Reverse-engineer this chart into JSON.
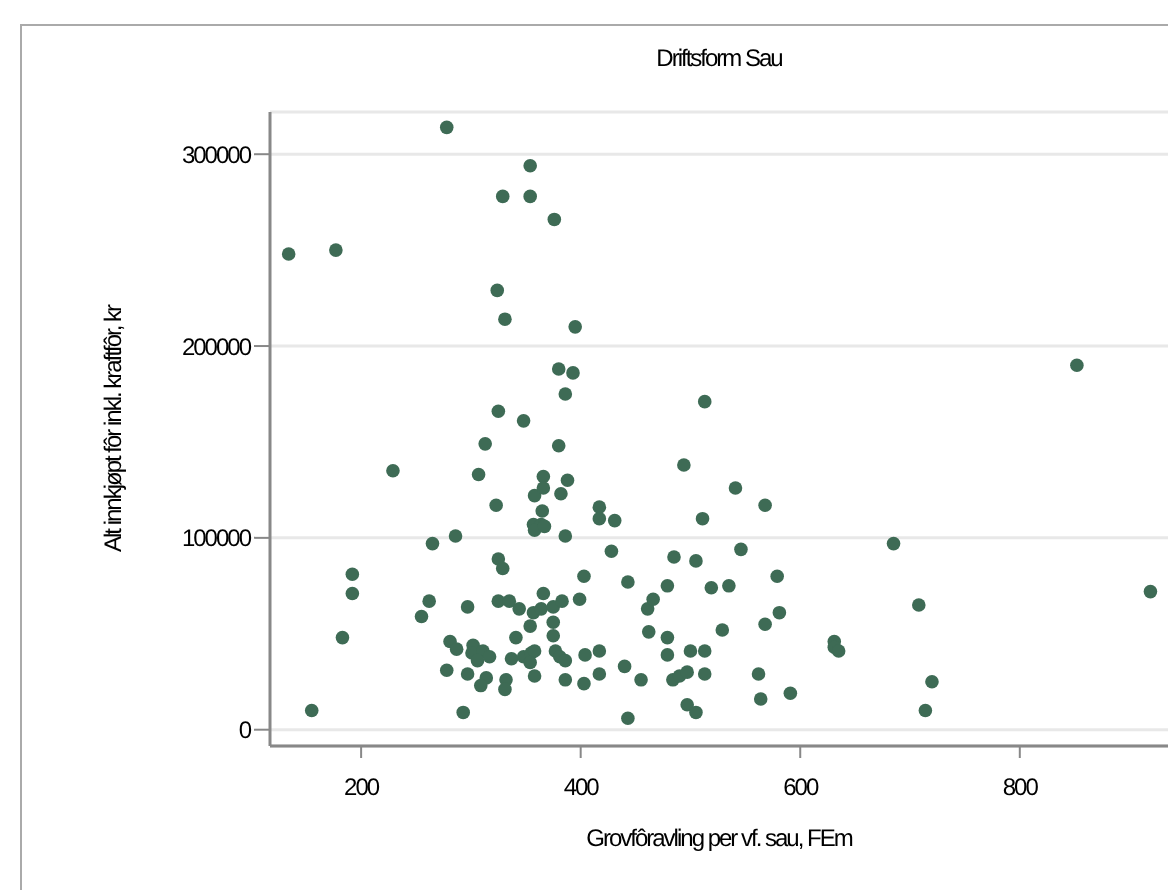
{
  "chart_data": {
    "type": "scatter",
    "title": "Driftsform Sau",
    "xlabel": "Grovfôravling per vf. sau, FEm",
    "ylabel": "Alt innkjøpt fôr inkl. kraftfôr, kr",
    "xlim": [
      117,
      935
    ],
    "ylim": [
      -8500,
      322000
    ],
    "xticks": [
      200,
      400,
      600,
      800
    ],
    "yticks": [
      0,
      100000,
      200000,
      300000
    ],
    "grid": "y",
    "marker": "circle",
    "series": [
      {
        "color": "#3e6b55",
        "x": [
          278,
          354,
          329,
          354,
          376,
          134,
          177,
          324,
          331,
          395,
          380,
          393,
          386,
          325,
          348,
          313,
          380,
          229,
          307,
          366,
          388,
          358,
          366,
          382,
          323,
          365,
          417,
          417,
          431,
          357,
          364,
          358,
          367,
          386,
          286,
          265,
          494,
          428,
          325,
          329,
          192,
          192,
          485,
          505,
          403,
          443,
          366,
          262,
          255,
          297,
          325,
          335,
          344,
          357,
          364,
          375,
          383,
          399,
          375,
          354,
          375,
          341,
          461,
          466,
          479,
          462,
          479,
          183,
          281,
          287,
          302,
          301,
          311,
          317,
          306,
          278,
          297,
          314,
          309,
          332,
          331,
          337,
          348,
          355,
          358,
          354,
          358,
          377,
          381,
          386,
          386,
          404,
          417,
          417,
          403,
          440,
          455,
          443,
          293,
          155,
          479,
          500,
          484,
          490,
          497,
          497,
          505,
          511,
          513,
          541,
          568,
          685,
          546,
          519,
          535,
          579,
          919,
          708,
          581,
          568,
          529,
          513,
          631,
          631,
          635,
          513,
          562,
          720,
          564,
          591,
          714,
          852
        ],
        "values": [
          314000,
          294000,
          278000,
          278000,
          266000,
          248000,
          250000,
          229000,
          214000,
          210000,
          188000,
          186000,
          175000,
          166000,
          161000,
          149000,
          148000,
          135000,
          133000,
          132000,
          130000,
          122000,
          126000,
          123000,
          117000,
          114000,
          116000,
          110000,
          109000,
          107000,
          107000,
          104000,
          106000,
          101000,
          101000,
          97000,
          138000,
          93000,
          89000,
          84000,
          81000,
          71000,
          90000,
          88000,
          80000,
          77000,
          71000,
          67000,
          59000,
          64000,
          67000,
          67000,
          63000,
          61000,
          63000,
          64000,
          67000,
          68000,
          56000,
          54000,
          49000,
          48000,
          63000,
          68000,
          75000,
          51000,
          48000,
          48000,
          46000,
          42000,
          44000,
          40000,
          41000,
          38000,
          36000,
          31000,
          29000,
          27000,
          23000,
          26000,
          21000,
          37000,
          38000,
          40000,
          41000,
          35000,
          28000,
          41000,
          38000,
          36000,
          26000,
          39000,
          41000,
          29000,
          24000,
          33000,
          26000,
          6000,
          9000,
          10000,
          39000,
          41000,
          26000,
          28000,
          30000,
          13000,
          9000,
          110000,
          171000,
          126000,
          117000,
          97000,
          94000,
          74000,
          75000,
          80000,
          72000,
          65000,
          61000,
          55000,
          52000,
          41000,
          46000,
          43000,
          41000,
          29000,
          29000,
          25000,
          16000,
          19000,
          10000,
          190000
        ]
      }
    ]
  }
}
